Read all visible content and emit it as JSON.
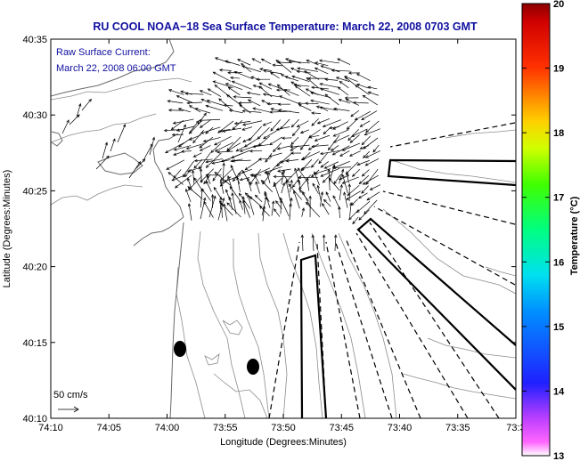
{
  "title": "RU COOL  NOAA−18  Sea Surface Temperature:  March 22, 2008 0703 GMT",
  "annotation": {
    "line1": "Raw Surface Current:",
    "line2": "March 22, 2008 06:00 GMT"
  },
  "scale": {
    "label": "50 cm/s"
  },
  "axes": {
    "xlabel": "Longitude (Degrees:Minutes)",
    "ylabel": "Latitude (Degrees:Minutes)",
    "x_ticks": [
      "74:10",
      "74:05",
      "74:00",
      "73:55",
      "73:50",
      "73:45",
      "73:40",
      "73:35",
      "73:3"
    ],
    "y_ticks": [
      "40:35",
      "40:30",
      "40:25",
      "40:20",
      "40:15",
      "40:10"
    ]
  },
  "colorbar": {
    "label": "Temperature (°C)",
    "ticks": [
      "20",
      "19",
      "18",
      "17",
      "16",
      "15",
      "14",
      "13"
    ],
    "min": 13,
    "max": 20
  },
  "colors": {
    "title": "#1010a0",
    "annotation": "#1010a0",
    "vectors": "#000000",
    "land": "#ffffff",
    "bathymetry": "#8c8c8c"
  }
}
